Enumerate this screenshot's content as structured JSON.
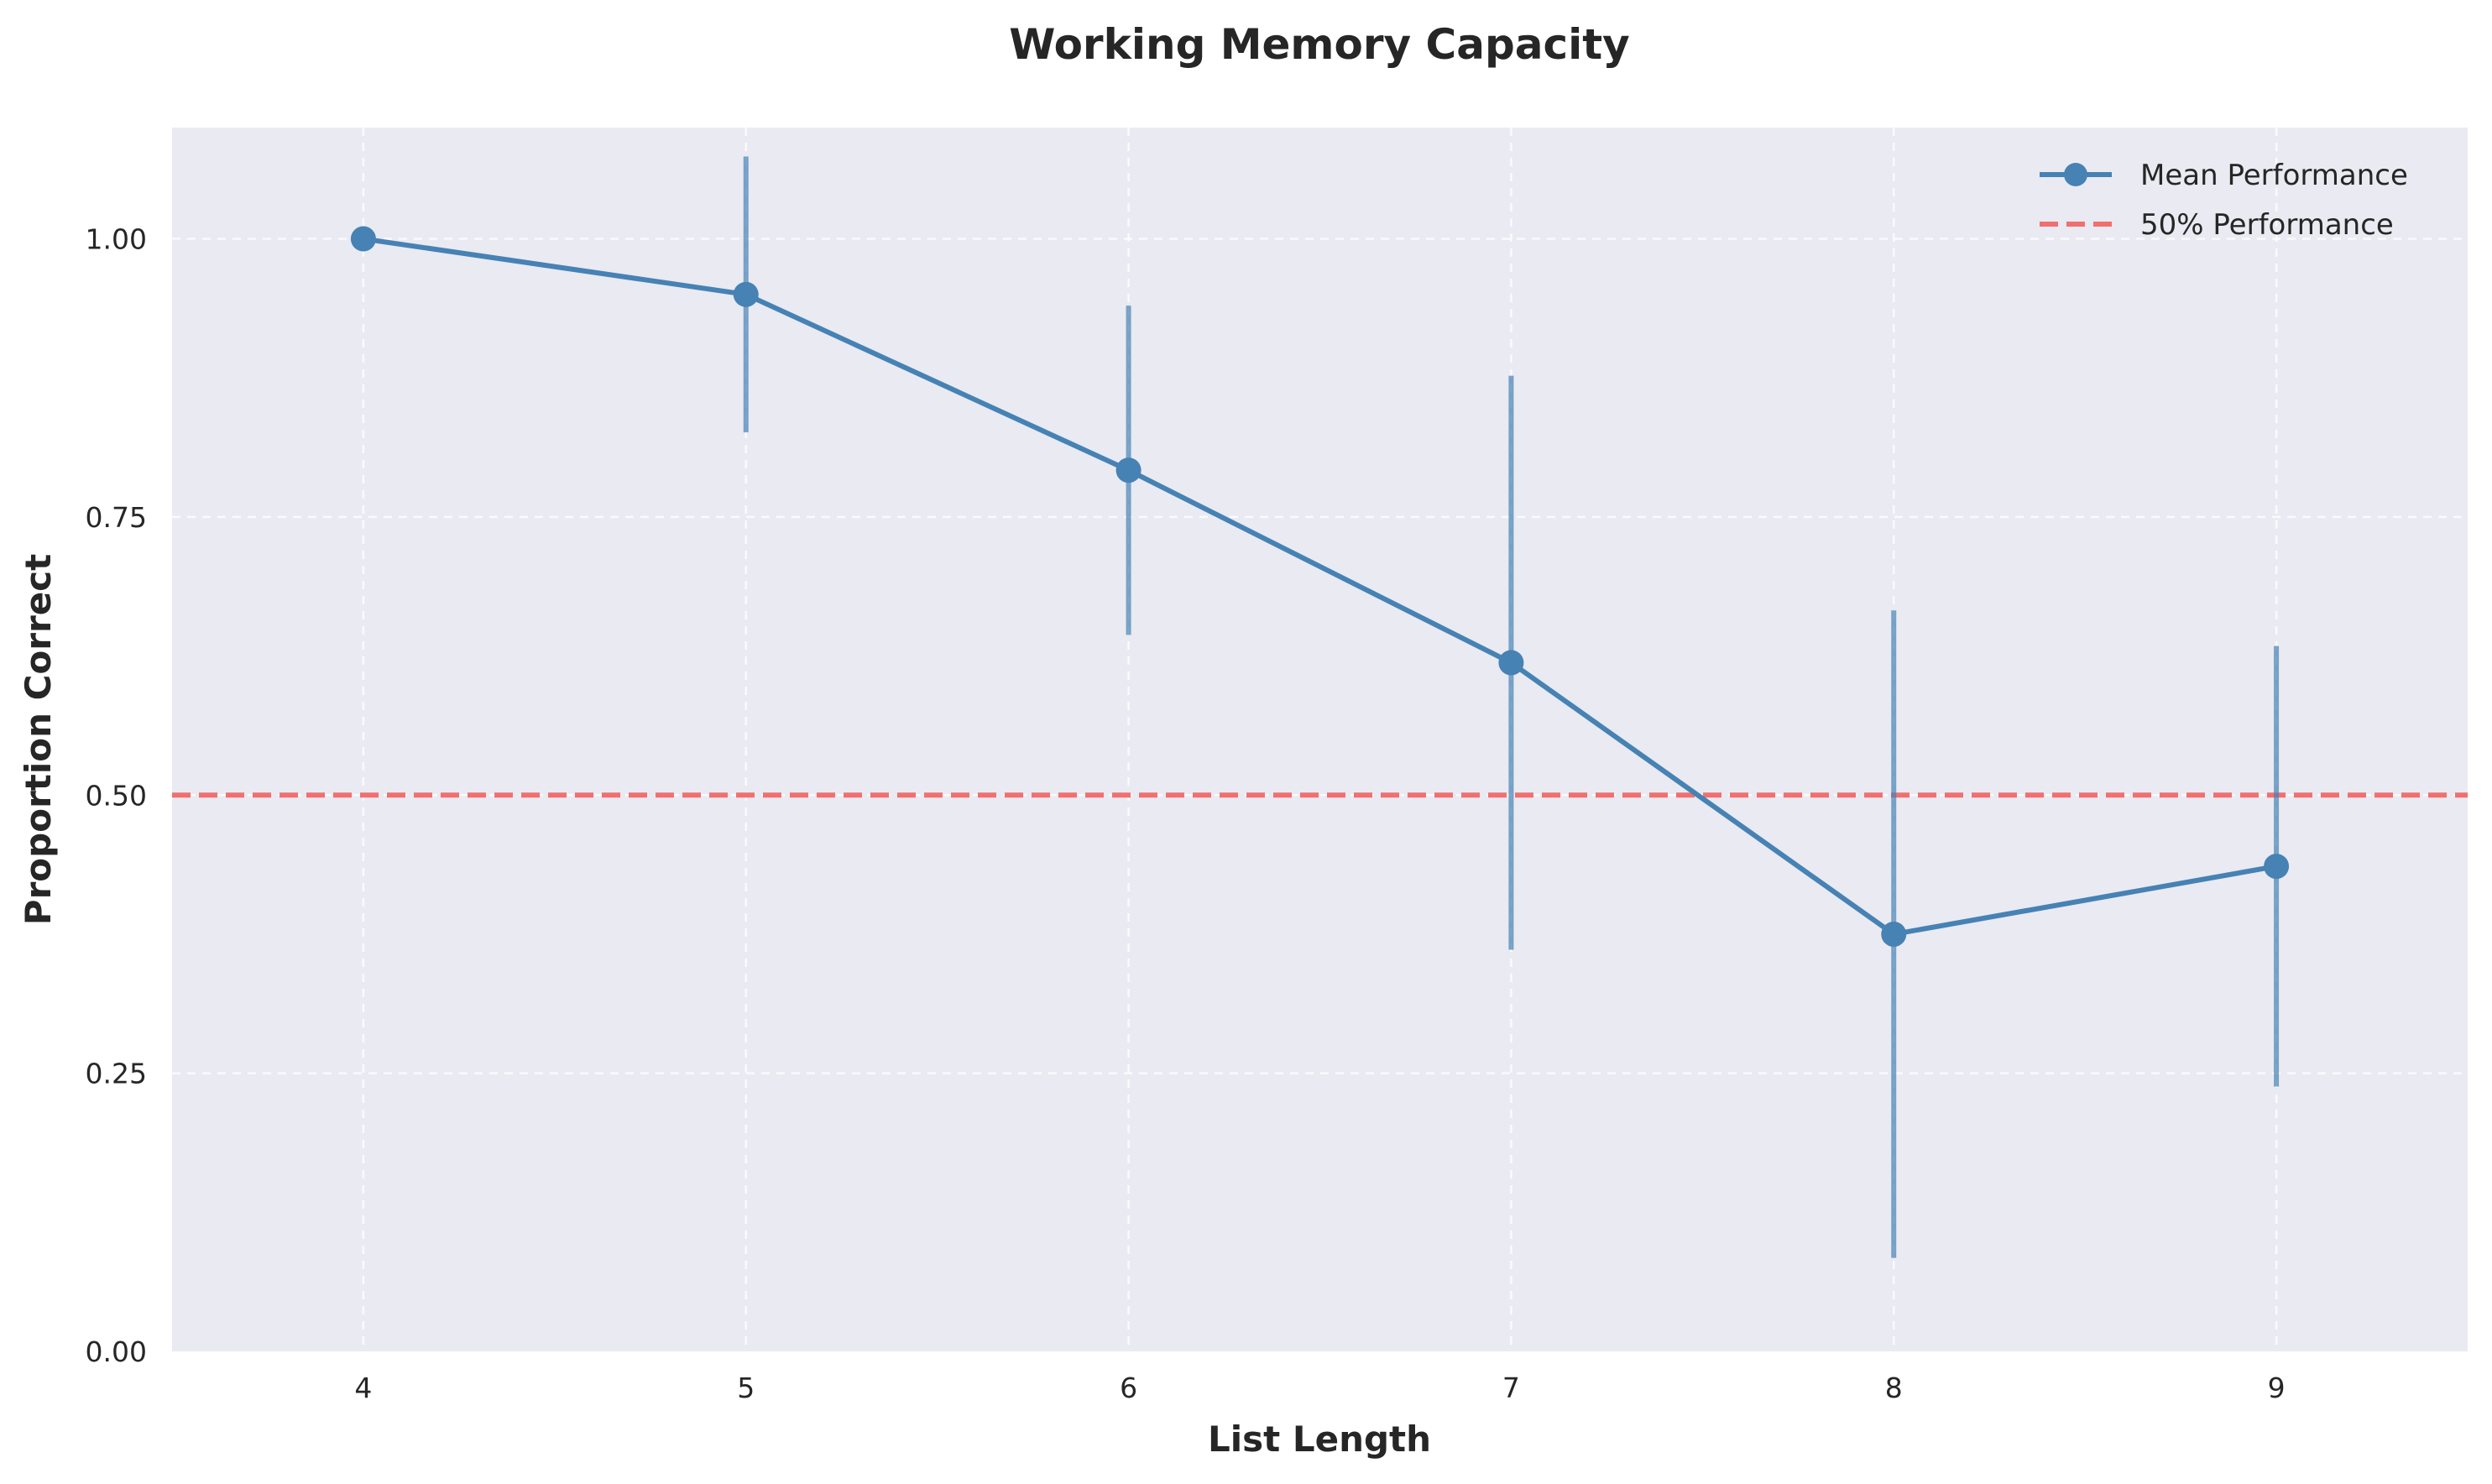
{
  "chart_data": {
    "type": "line",
    "title": "Working Memory Capacity",
    "xlabel": "List Length",
    "ylabel": "Proportion Correct",
    "x": [
      4,
      5,
      6,
      7,
      8,
      9
    ],
    "xlim": [
      3.5,
      9.5
    ],
    "ylim": [
      0,
      1.1
    ],
    "xticks": [
      "4",
      "5",
      "6",
      "7",
      "8",
      "9"
    ],
    "yticks": [
      "0.00",
      "0.25",
      "0.50",
      "0.75",
      "1.00"
    ],
    "series": [
      {
        "name": "Mean Performance",
        "values": [
          1.0,
          0.95,
          0.792,
          0.619,
          0.375,
          0.436
        ],
        "error_lower": [
          1.0,
          0.826,
          0.644,
          0.361,
          0.084,
          0.238
        ],
        "error_upper": [
          1.0,
          1.074,
          0.94,
          0.877,
          0.666,
          0.634
        ],
        "color": "#4682b4"
      }
    ],
    "reference_line": {
      "name": "50% Performance",
      "y": 0.5,
      "color": "#f07070",
      "style": "dashed"
    },
    "grid": true,
    "legend_position": "top-right",
    "background_color": "#eaeaf2"
  }
}
